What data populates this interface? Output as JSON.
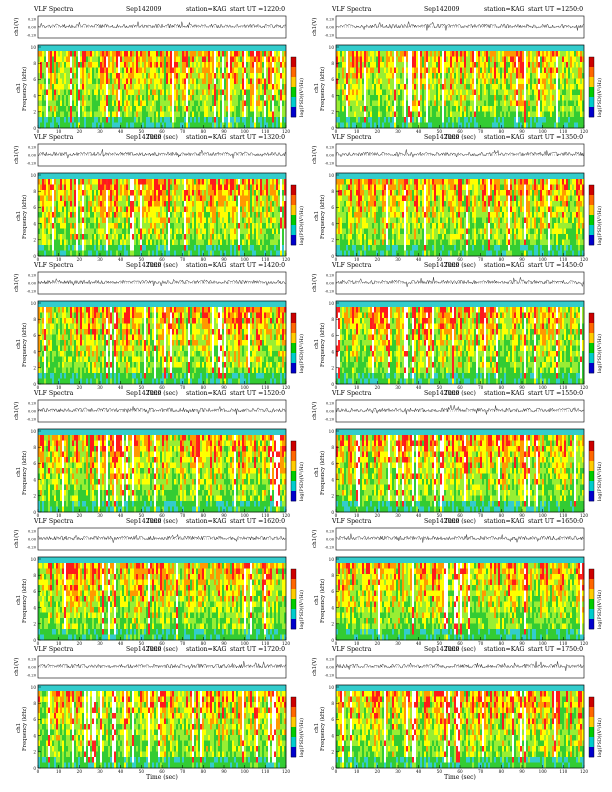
{
  "figure": {
    "panel_title_prefix": "VLF Spectra",
    "date": "Sep142009",
    "station": "station=KAG",
    "start_ut_label": "start UT =",
    "cb_label": "log(PSD)(V²/Hz)",
    "top_ylabel": "ch1(V)",
    "ylabel_a": "ch1",
    "ylabel_b": "Frequency (kHz)",
    "xlabel": "Time (sec)"
  },
  "chart_data": [
    {
      "type": "heatmap",
      "start_ut": "1220:0",
      "x_ticks": [
        0,
        10,
        20,
        30,
        40,
        50,
        60,
        70,
        80,
        90,
        100,
        110,
        120
      ],
      "y_ticks": [
        0,
        2,
        4,
        6,
        8,
        10
      ],
      "waveform_ticks": [
        "0.20",
        "0.00",
        "-0.20"
      ],
      "xlim": [
        0,
        120
      ],
      "ylim": [
        0,
        10
      ],
      "xlabel": "Time (sec)",
      "ylabel": "Frequency (kHz)",
      "colorbar": [
        "#cc0000",
        "#ff6600",
        "#ffcc00",
        "#00cc00",
        "#00cccc",
        "#0000cc"
      ]
    },
    {
      "type": "heatmap",
      "start_ut": "1250:0",
      "x_ticks": [
        0,
        10,
        20,
        30,
        40,
        50,
        60,
        70,
        80,
        90,
        100,
        110,
        120
      ],
      "y_ticks": [
        0,
        2,
        4,
        6,
        8,
        10
      ],
      "waveform_ticks": [
        "0.20",
        "0.00",
        "-0.20"
      ],
      "xlim": [
        0,
        120
      ],
      "ylim": [
        0,
        10
      ],
      "xlabel": "Time (sec)",
      "ylabel": "Frequency (kHz)",
      "colorbar": [
        "#cc0000",
        "#ff6600",
        "#ffcc00",
        "#00cc00",
        "#00cccc",
        "#0000cc"
      ]
    },
    {
      "type": "heatmap",
      "start_ut": "1320:0",
      "x_ticks": [
        0,
        10,
        20,
        30,
        40,
        50,
        60,
        70,
        80,
        90,
        100,
        110,
        120
      ],
      "y_ticks": [
        0,
        2,
        4,
        6,
        8,
        10
      ],
      "waveform_ticks": [
        "0.20",
        "0.00",
        "-0.20"
      ],
      "xlim": [
        0,
        120
      ],
      "ylim": [
        0,
        10
      ],
      "xlabel": "Time (sec)",
      "ylabel": "Frequency (kHz)",
      "colorbar": [
        "#cc0000",
        "#ff6600",
        "#ffcc00",
        "#00cc00",
        "#00cccc",
        "#0000cc"
      ]
    },
    {
      "type": "heatmap",
      "start_ut": "1350:0",
      "x_ticks": [
        0,
        10,
        20,
        30,
        40,
        50,
        60,
        70,
        80,
        90,
        100,
        110,
        120
      ],
      "y_ticks": [
        0,
        2,
        4,
        6,
        8,
        10
      ],
      "waveform_ticks": [
        "0.20",
        "0.00",
        "-0.20"
      ],
      "xlim": [
        0,
        120
      ],
      "ylim": [
        0,
        10
      ],
      "xlabel": "Time (sec)",
      "ylabel": "Frequency (kHz)",
      "colorbar": [
        "#cc0000",
        "#ff6600",
        "#ffcc00",
        "#00cc00",
        "#00cccc",
        "#0000cc"
      ]
    },
    {
      "type": "heatmap",
      "start_ut": "1420:0",
      "x_ticks": [
        0,
        10,
        20,
        30,
        40,
        50,
        60,
        70,
        80,
        90,
        100,
        110,
        120
      ],
      "y_ticks": [
        0,
        2,
        4,
        6,
        8,
        10
      ],
      "waveform_ticks": [
        "0.20",
        "0.00",
        "-0.20"
      ],
      "xlim": [
        0,
        120
      ],
      "ylim": [
        0,
        10
      ],
      "xlabel": "Time (sec)",
      "ylabel": "Frequency (kHz)",
      "colorbar": [
        "#cc0000",
        "#ff6600",
        "#ffcc00",
        "#00cc00",
        "#00cccc",
        "#0000cc"
      ]
    },
    {
      "type": "heatmap",
      "start_ut": "1450:0",
      "x_ticks": [
        0,
        10,
        20,
        30,
        40,
        50,
        60,
        70,
        80,
        90,
        100,
        110,
        120
      ],
      "y_ticks": [
        0,
        2,
        4,
        6,
        8,
        10
      ],
      "waveform_ticks": [
        "0.20",
        "0.00",
        "-0.20"
      ],
      "xlim": [
        0,
        120
      ],
      "ylim": [
        0,
        10
      ],
      "xlabel": "Time (sec)",
      "ylabel": "Frequency (kHz)",
      "colorbar": [
        "#cc0000",
        "#ff6600",
        "#ffcc00",
        "#00cc00",
        "#00cccc",
        "#0000cc"
      ]
    },
    {
      "type": "heatmap",
      "start_ut": "1520:0",
      "x_ticks": [
        0,
        10,
        20,
        30,
        40,
        50,
        60,
        70,
        80,
        90,
        100,
        110,
        120
      ],
      "y_ticks": [
        0,
        2,
        4,
        6,
        8,
        10
      ],
      "waveform_ticks": [
        "0.20",
        "0.00",
        "-0.20"
      ],
      "xlim": [
        0,
        120
      ],
      "ylim": [
        0,
        10
      ],
      "xlabel": "Time (sec)",
      "ylabel": "Frequency (kHz)",
      "colorbar": [
        "#cc0000",
        "#ff6600",
        "#ffcc00",
        "#00cc00",
        "#00cccc",
        "#0000cc"
      ]
    },
    {
      "type": "heatmap",
      "start_ut": "1550:0",
      "x_ticks": [
        0,
        10,
        20,
        30,
        40,
        50,
        60,
        70,
        80,
        90,
        100,
        110,
        120
      ],
      "y_ticks": [
        0,
        2,
        4,
        6,
        8,
        10
      ],
      "waveform_ticks": [
        "0.20",
        "0.00",
        "-0.20"
      ],
      "xlim": [
        0,
        120
      ],
      "ylim": [
        0,
        10
      ],
      "xlabel": "Time (sec)",
      "ylabel": "Frequency (kHz)",
      "colorbar": [
        "#cc0000",
        "#ff6600",
        "#ffcc00",
        "#00cc00",
        "#00cccc",
        "#0000cc"
      ]
    },
    {
      "type": "heatmap",
      "start_ut": "1620:0",
      "x_ticks": [
        0,
        10,
        20,
        30,
        40,
        50,
        60,
        70,
        80,
        90,
        100,
        110,
        120
      ],
      "y_ticks": [
        0,
        2,
        4,
        6,
        8,
        10
      ],
      "waveform_ticks": [
        "0.20",
        "0.00",
        "-0.20"
      ],
      "xlim": [
        0,
        120
      ],
      "ylim": [
        0,
        10
      ],
      "xlabel": "Time (sec)",
      "ylabel": "Frequency (kHz)",
      "colorbar": [
        "#cc0000",
        "#ff6600",
        "#ffcc00",
        "#00cc00",
        "#00cccc",
        "#0000cc"
      ]
    },
    {
      "type": "heatmap",
      "start_ut": "1650:0",
      "x_ticks": [
        0,
        10,
        20,
        30,
        40,
        50,
        60,
        70,
        80,
        90,
        100,
        110,
        120
      ],
      "y_ticks": [
        0,
        2,
        4,
        6,
        8,
        10
      ],
      "waveform_ticks": [
        "0.20",
        "0.00",
        "-0.20"
      ],
      "xlim": [
        0,
        120
      ],
      "ylim": [
        0,
        10
      ],
      "xlabel": "Time (sec)",
      "ylabel": "Frequency (kHz)",
      "colorbar": [
        "#cc0000",
        "#ff6600",
        "#ffcc00",
        "#00cc00",
        "#00cccc",
        "#0000cc"
      ]
    },
    {
      "type": "heatmap",
      "start_ut": "1720:0",
      "x_ticks": [
        0,
        10,
        20,
        30,
        40,
        50,
        60,
        70,
        80,
        90,
        100,
        110,
        120
      ],
      "y_ticks": [
        0,
        2,
        4,
        6,
        8,
        10
      ],
      "waveform_ticks": [
        "0.20",
        "0.00",
        "-0.20"
      ],
      "xlim": [
        0,
        120
      ],
      "ylim": [
        0,
        10
      ],
      "xlabel": "Time (sec)",
      "ylabel": "Frequency (kHz)",
      "colorbar": [
        "#cc0000",
        "#ff6600",
        "#ffcc00",
        "#00cc00",
        "#00cccc",
        "#0000cc"
      ]
    },
    {
      "type": "heatmap",
      "start_ut": "1750:0",
      "x_ticks": [
        0,
        10,
        20,
        30,
        40,
        50,
        60,
        70,
        80,
        90,
        100,
        110,
        120
      ],
      "y_ticks": [
        0,
        2,
        4,
        6,
        8,
        10
      ],
      "waveform_ticks": [
        "0.20",
        "0.00",
        "-0.20"
      ],
      "xlim": [
        0,
        120
      ],
      "ylim": [
        0,
        10
      ],
      "xlabel": "Time (sec)",
      "ylabel": "Frequency (kHz)",
      "colorbar": [
        "#cc0000",
        "#ff6600",
        "#ffcc00",
        "#00cc00",
        "#00cccc",
        "#0000cc"
      ]
    }
  ]
}
